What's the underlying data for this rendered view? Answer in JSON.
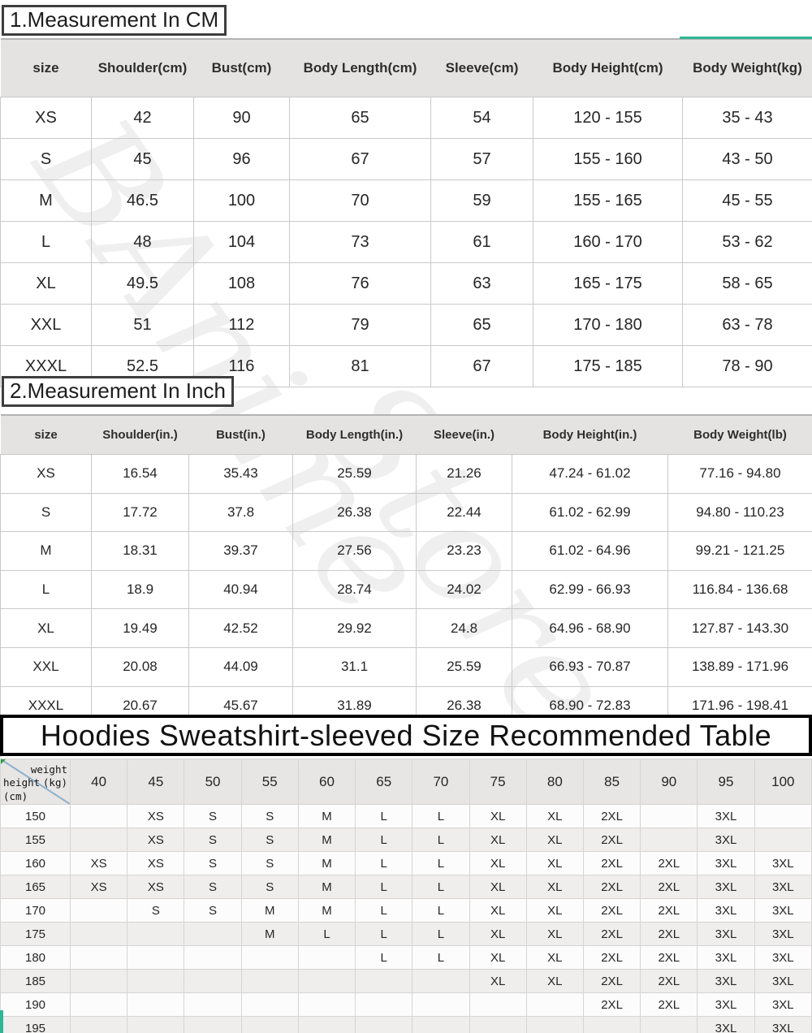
{
  "colors": {
    "accent_teal": "#2eb795",
    "header_gray": "#e4e3e1",
    "stripe_gray": "#efeeec"
  },
  "watermark": {
    "line1": "BAnime",
    "line2": "Store"
  },
  "cm_table": {
    "title": "1.Measurement In CM",
    "headers": [
      "size",
      "Shoulder(cm)",
      "Bust(cm)",
      "Body Length(cm)",
      "Sleeve(cm)",
      "Body Height(cm)",
      "Body Weight(kg)"
    ],
    "rows": [
      [
        "XS",
        "42",
        "90",
        "65",
        "54",
        "120 - 155",
        "35 - 43"
      ],
      [
        "S",
        "45",
        "96",
        "67",
        "57",
        "155 - 160",
        "43 - 50"
      ],
      [
        "M",
        "46.5",
        "100",
        "70",
        "59",
        "155 - 165",
        "45 - 55"
      ],
      [
        "L",
        "48",
        "104",
        "73",
        "61",
        "160 - 170",
        "53 - 62"
      ],
      [
        "XL",
        "49.5",
        "108",
        "76",
        "63",
        "165 - 175",
        "58 - 65"
      ],
      [
        "XXL",
        "51",
        "112",
        "79",
        "65",
        "170 - 180",
        "63 - 78"
      ],
      [
        "XXXL",
        "52.5",
        "116",
        "81",
        "67",
        "175 - 185",
        "78 - 90"
      ]
    ]
  },
  "inch_table": {
    "title": "2.Measurement In Inch",
    "headers": [
      "size",
      "Shoulder(in.)",
      "Bust(in.)",
      "Body Length(in.)",
      "Sleeve(in.)",
      "Body Height(in.)",
      "Body Weight(lb)"
    ],
    "rows": [
      [
        "XS",
        "16.54",
        "35.43",
        "25.59",
        "21.26",
        "47.24 - 61.02",
        "77.16 - 94.80"
      ],
      [
        "S",
        "17.72",
        "37.8",
        "26.38",
        "22.44",
        "61.02 - 62.99",
        "94.80 - 110.23"
      ],
      [
        "M",
        "18.31",
        "39.37",
        "27.56",
        "23.23",
        "61.02 - 64.96",
        "99.21 - 121.25"
      ],
      [
        "L",
        "18.9",
        "40.94",
        "28.74",
        "24.02",
        "62.99 - 66.93",
        "116.84 - 136.68"
      ],
      [
        "XL",
        "19.49",
        "42.52",
        "29.92",
        "24.8",
        "64.96 - 68.90",
        "127.87 - 143.30"
      ],
      [
        "XXL",
        "20.08",
        "44.09",
        "31.1",
        "25.59",
        "66.93 - 70.87",
        "138.89 - 171.96"
      ],
      [
        "XXXL",
        "20.67",
        "45.67",
        "31.89",
        "26.38",
        "68.90 - 72.83",
        "171.96 - 198.41"
      ]
    ]
  },
  "size_matrix": {
    "title": "Hoodies Sweatshirt-sleeved Size Recommended Table",
    "corner": {
      "weight_label": "weight",
      "weight_unit": "(kg)",
      "height_label": "height",
      "height_unit": "(cm)"
    },
    "weight_columns": [
      "40",
      "45",
      "50",
      "55",
      "60",
      "65",
      "70",
      "75",
      "80",
      "85",
      "90",
      "95",
      "100"
    ],
    "rows": [
      {
        "height": "150",
        "cells": [
          "",
          "XS",
          "S",
          "S",
          "M",
          "L",
          "L",
          "XL",
          "XL",
          "2XL",
          "",
          "3XL",
          ""
        ]
      },
      {
        "height": "155",
        "cells": [
          "",
          "XS",
          "S",
          "S",
          "M",
          "L",
          "L",
          "XL",
          "XL",
          "2XL",
          "",
          "3XL",
          ""
        ]
      },
      {
        "height": "160",
        "cells": [
          "XS",
          "XS",
          "S",
          "S",
          "M",
          "L",
          "L",
          "XL",
          "XL",
          "2XL",
          "2XL",
          "3XL",
          "3XL"
        ]
      },
      {
        "height": "165",
        "cells": [
          "XS",
          "XS",
          "S",
          "S",
          "M",
          "L",
          "L",
          "XL",
          "XL",
          "2XL",
          "2XL",
          "3XL",
          "3XL"
        ]
      },
      {
        "height": "170",
        "cells": [
          "",
          "S",
          "S",
          "M",
          "M",
          "L",
          "L",
          "XL",
          "XL",
          "2XL",
          "2XL",
          "3XL",
          "3XL"
        ]
      },
      {
        "height": "175",
        "cells": [
          "",
          "",
          "",
          "M",
          "L",
          "L",
          "L",
          "XL",
          "XL",
          "2XL",
          "2XL",
          "3XL",
          "3XL"
        ]
      },
      {
        "height": "180",
        "cells": [
          "",
          "",
          "",
          "",
          "",
          "L",
          "L",
          "XL",
          "XL",
          "2XL",
          "2XL",
          "3XL",
          "3XL"
        ]
      },
      {
        "height": "185",
        "cells": [
          "",
          "",
          "",
          "",
          "",
          "",
          "",
          "XL",
          "XL",
          "2XL",
          "2XL",
          "3XL",
          "3XL"
        ]
      },
      {
        "height": "190",
        "cells": [
          "",
          "",
          "",
          "",
          "",
          "",
          "",
          "",
          "",
          "2XL",
          "2XL",
          "3XL",
          "3XL"
        ]
      },
      {
        "height": "195",
        "cells": [
          "",
          "",
          "",
          "",
          "",
          "",
          "",
          "",
          "",
          "",
          "",
          "3XL",
          "3XL"
        ]
      }
    ]
  }
}
